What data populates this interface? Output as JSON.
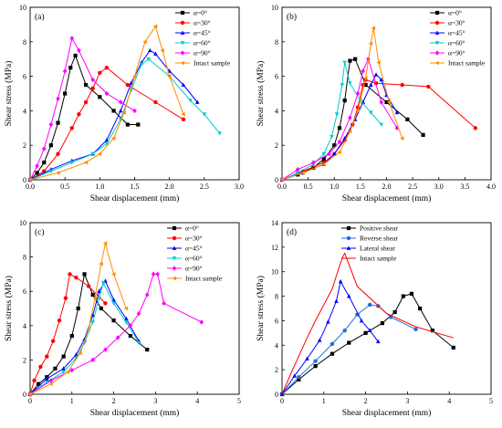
{
  "figure": {
    "title": ""
  },
  "chart_data": [
    {
      "panel": "(a)",
      "type": "line",
      "xlabel": "Shear displacement (mm)",
      "ylabel": "Shear stress (MPa)",
      "xlim": [
        0,
        3.0
      ],
      "ylim": [
        0,
        10
      ],
      "xticks": [
        "0.0",
        "0.5",
        "1.0",
        "1.5",
        "2.0",
        "2.5",
        "3.0"
      ],
      "yticks": [
        "0",
        "2",
        "4",
        "6",
        "8",
        "10"
      ],
      "legend_position": "top-right",
      "series": [
        {
          "name": "α=0°",
          "color": "#000000",
          "marker": "square",
          "x": [
            0,
            0.1,
            0.2,
            0.3,
            0.4,
            0.5,
            0.58,
            0.65,
            0.8,
            1.0,
            1.2,
            1.4,
            1.55
          ],
          "y": [
            0,
            0.4,
            1.0,
            2.0,
            3.3,
            5.0,
            6.5,
            7.2,
            5.5,
            4.8,
            4.0,
            3.2,
            3.2
          ]
        },
        {
          "name": "α=30°",
          "color": "#ff0000",
          "marker": "circle",
          "x": [
            0,
            0.2,
            0.4,
            0.6,
            0.7,
            0.8,
            0.9,
            1.0,
            1.1,
            1.4,
            1.8,
            2.2
          ],
          "y": [
            0,
            0.5,
            1.5,
            3.0,
            3.8,
            4.5,
            5.3,
            6.2,
            6.5,
            5.5,
            4.5,
            3.5
          ]
        },
        {
          "name": "α=45°",
          "color": "#0000ff",
          "marker": "triangle",
          "x": [
            0,
            0.3,
            0.6,
            0.9,
            1.1,
            1.3,
            1.45,
            1.6,
            1.72,
            1.8,
            2.0,
            2.2,
            2.4
          ],
          "y": [
            0,
            0.6,
            1.1,
            1.5,
            2.3,
            4.0,
            5.6,
            6.8,
            7.5,
            7.3,
            6.3,
            5.5,
            4.5
          ]
        },
        {
          "name": "α=60°",
          "color": "#00cccc",
          "marker": "triangle-down",
          "x": [
            0,
            0.3,
            0.6,
            0.9,
            1.1,
            1.3,
            1.45,
            1.6,
            1.7,
            2.0,
            2.3,
            2.5,
            2.72
          ],
          "y": [
            0,
            0.5,
            1.0,
            1.5,
            2.1,
            3.5,
            5.2,
            6.7,
            7.0,
            6.0,
            4.6,
            3.8,
            2.7
          ]
        },
        {
          "name": "α=90°",
          "color": "#ff00ff",
          "marker": "diamond",
          "x": [
            0,
            0.1,
            0.2,
            0.3,
            0.4,
            0.5,
            0.6,
            0.7,
            0.9,
            1.1,
            1.3,
            1.5
          ],
          "y": [
            0,
            0.8,
            1.8,
            3.2,
            4.7,
            6.3,
            8.2,
            7.5,
            5.8,
            5.0,
            4.5,
            4.0
          ]
        },
        {
          "name": "Intact sample",
          "color": "#ff8c00",
          "marker": "triangle-left",
          "x": [
            0,
            0.4,
            0.8,
            1.0,
            1.2,
            1.35,
            1.5,
            1.65,
            1.8,
            1.9,
            2.0,
            2.2
          ],
          "y": [
            0,
            0.4,
            1.0,
            1.5,
            2.4,
            3.9,
            6.0,
            8.0,
            8.9,
            7.5,
            6.0,
            3.8
          ]
        }
      ]
    },
    {
      "panel": "(b)",
      "type": "line",
      "xlabel": "Shear displacement (mm)",
      "ylabel": "Shear stress (MPa)",
      "xlim": [
        0,
        4.0
      ],
      "ylim": [
        0,
        10
      ],
      "xticks": [
        "0.0",
        "0.5",
        "1.0",
        "1.5",
        "2.0",
        "2.5",
        "3.0",
        "3.5",
        "4.0"
      ],
      "yticks": [
        "0",
        "2",
        "4",
        "6",
        "8",
        "10"
      ],
      "legend_position": "top-right",
      "series": [
        {
          "name": "α=0°",
          "color": "#000000",
          "marker": "square",
          "x": [
            0,
            0.3,
            0.6,
            0.8,
            1.0,
            1.1,
            1.2,
            1.3,
            1.4,
            1.6,
            2.0,
            2.4,
            2.7
          ],
          "y": [
            0,
            0.3,
            0.7,
            1.2,
            2.0,
            3.0,
            4.6,
            6.9,
            7.0,
            5.5,
            4.5,
            3.5,
            2.6
          ]
        },
        {
          "name": "α=30°",
          "color": "#ff0000",
          "marker": "circle",
          "x": [
            0,
            0.4,
            0.8,
            1.0,
            1.2,
            1.35,
            1.45,
            1.55,
            1.6,
            1.8,
            2.3,
            2.8,
            3.7
          ],
          "y": [
            0,
            0.5,
            1.0,
            1.5,
            2.3,
            3.2,
            4.2,
            5.5,
            5.8,
            5.6,
            5.5,
            5.4,
            3.0
          ]
        },
        {
          "name": "α=45°",
          "color": "#0000ff",
          "marker": "triangle",
          "x": [
            0,
            0.4,
            0.8,
            1.0,
            1.2,
            1.4,
            1.55,
            1.7,
            1.8,
            1.9,
            2.0,
            2.2
          ],
          "y": [
            0,
            0.4,
            0.9,
            1.5,
            2.4,
            3.5,
            4.5,
            5.5,
            6.1,
            5.8,
            4.9,
            3.9
          ]
        },
        {
          "name": "α=60°",
          "color": "#00cccc",
          "marker": "triangle-down",
          "x": [
            0,
            0.3,
            0.6,
            0.8,
            0.95,
            1.05,
            1.15,
            1.2,
            1.3,
            1.5,
            1.7,
            1.9
          ],
          "y": [
            0,
            0.4,
            0.9,
            1.5,
            2.5,
            3.8,
            5.5,
            6.8,
            5.6,
            4.6,
            3.9,
            3.2
          ]
        },
        {
          "name": "α=90°",
          "color": "#ff00ff",
          "marker": "diamond",
          "x": [
            0,
            0.3,
            0.6,
            0.9,
            1.1,
            1.3,
            1.45,
            1.55,
            1.65,
            1.9,
            2.2
          ],
          "y": [
            0,
            0.6,
            1.0,
            1.5,
            2.2,
            3.6,
            5.0,
            6.3,
            7.0,
            4.5,
            3.0
          ]
        },
        {
          "name": "Intact sample",
          "color": "#ff8c00",
          "marker": "triangle-left",
          "x": [
            0,
            0.4,
            0.8,
            1.1,
            1.3,
            1.45,
            1.6,
            1.7,
            1.75,
            1.85,
            2.05,
            2.3
          ],
          "y": [
            0,
            0.4,
            0.9,
            1.6,
            2.8,
            4.0,
            5.9,
            7.9,
            8.8,
            6.8,
            4.5,
            2.4
          ]
        }
      ]
    },
    {
      "panel": "(c)",
      "type": "line",
      "xlabel": "Shear displacement (mm)",
      "ylabel": "Shear stress (MPa)",
      "xlim": [
        0,
        5
      ],
      "ylim": [
        0,
        10
      ],
      "xticks": [
        "0",
        "1",
        "2",
        "3",
        "4",
        "5"
      ],
      "yticks": [
        "0",
        "2",
        "4",
        "6",
        "8",
        "10"
      ],
      "legend_position": "top-right",
      "series": [
        {
          "name": "α=0°",
          "color": "#000000",
          "marker": "square",
          "x": [
            0,
            0.2,
            0.4,
            0.6,
            0.8,
            1.0,
            1.15,
            1.3,
            1.5,
            1.7,
            2.0,
            2.4,
            2.8
          ],
          "y": [
            0,
            0.6,
            1.0,
            1.5,
            2.2,
            3.4,
            5.0,
            7.0,
            5.8,
            5.0,
            4.3,
            3.4,
            2.6
          ]
        },
        {
          "name": "α=30°",
          "color": "#ff0000",
          "marker": "circle",
          "x": [
            0,
            0.1,
            0.25,
            0.4,
            0.55,
            0.7,
            0.85,
            0.95,
            1.1,
            1.4,
            1.8
          ],
          "y": [
            0,
            0.8,
            1.6,
            2.2,
            3.1,
            4.3,
            5.6,
            7.0,
            6.8,
            6.3,
            5.3
          ]
        },
        {
          "name": "α=45°",
          "color": "#0000ff",
          "marker": "triangle",
          "x": [
            0,
            0.4,
            0.8,
            1.1,
            1.3,
            1.5,
            1.65,
            1.8,
            2.0,
            2.3,
            2.6
          ],
          "y": [
            0,
            0.9,
            1.5,
            2.3,
            3.2,
            4.6,
            6.0,
            6.6,
            5.5,
            4.4,
            3.1
          ]
        },
        {
          "name": "α=60°",
          "color": "#00cccc",
          "marker": "triangle-down",
          "x": [
            0,
            0.4,
            0.8,
            1.1,
            1.3,
            1.5,
            1.65,
            1.75,
            2.0,
            2.3,
            2.6
          ],
          "y": [
            0,
            0.7,
            1.3,
            2.1,
            3.0,
            4.2,
            5.6,
            6.5,
            5.3,
            4.2,
            3.0
          ]
        },
        {
          "name": "α=90°",
          "color": "#ff00ff",
          "marker": "diamond",
          "x": [
            0,
            0.5,
            1.0,
            1.5,
            1.8,
            2.1,
            2.4,
            2.6,
            2.8,
            2.95,
            3.05,
            3.2,
            4.1
          ],
          "y": [
            0,
            0.8,
            1.4,
            2.0,
            2.6,
            3.3,
            4.0,
            4.7,
            5.8,
            7.0,
            7.0,
            5.3,
            4.2
          ]
        },
        {
          "name": "Intact sample",
          "color": "#ff8c00",
          "marker": "triangle-left",
          "x": [
            0,
            0.5,
            0.9,
            1.2,
            1.4,
            1.55,
            1.7,
            1.8,
            2.0,
            2.3
          ],
          "y": [
            0,
            0.6,
            1.3,
            2.4,
            3.8,
            5.6,
            7.6,
            8.8,
            7.0,
            5.0
          ]
        }
      ]
    },
    {
      "panel": "(d)",
      "type": "line",
      "xlabel": "Shear displacement (mm)",
      "ylabel": "Shear stress (MPa)",
      "xlim": [
        0,
        5
      ],
      "ylim": [
        0,
        14
      ],
      "xticks": [
        "0",
        "1",
        "2",
        "3",
        "4",
        "5"
      ],
      "yticks": [
        "0",
        "2",
        "4",
        "6",
        "8",
        "10",
        "12",
        "14"
      ],
      "legend_position": "top-right",
      "series": [
        {
          "name": "Positive shear",
          "color": "#000000",
          "marker": "square",
          "x": [
            0,
            0.4,
            0.8,
            1.2,
            1.6,
            2.0,
            2.4,
            2.7,
            2.9,
            3.1,
            3.3,
            3.6,
            4.1
          ],
          "y": [
            0,
            1.2,
            2.3,
            3.3,
            4.2,
            5.0,
            5.8,
            6.7,
            8.0,
            8.2,
            7.0,
            5.2,
            3.8
          ]
        },
        {
          "name": "Reverse shear",
          "color": "#1e6fd9",
          "marker": "circle",
          "x": [
            0,
            0.4,
            0.8,
            1.2,
            1.5,
            1.8,
            2.1,
            2.3,
            2.6,
            3.2
          ],
          "y": [
            0,
            1.4,
            2.7,
            4.1,
            5.2,
            6.5,
            7.3,
            7.2,
            6.3,
            5.3
          ]
        },
        {
          "name": "Lateral shear",
          "color": "#0000ff",
          "marker": "triangle",
          "x": [
            0,
            0.3,
            0.6,
            0.9,
            1.1,
            1.3,
            1.4,
            1.6,
            1.9,
            2.1,
            2.3
          ],
          "y": [
            0,
            1.5,
            2.9,
            4.4,
            5.9,
            7.6,
            9.2,
            8.0,
            6.0,
            5.2,
            4.3
          ]
        },
        {
          "name": "Intact sample",
          "color": "#ff0000",
          "marker": "none",
          "x": [
            0,
            0.2,
            0.4,
            0.6,
            0.8,
            1.0,
            1.2,
            1.35,
            1.45,
            1.5,
            1.8,
            2.5,
            3.2,
            4.1
          ],
          "y": [
            0,
            1.6,
            3.1,
            4.6,
            6.0,
            7.3,
            8.6,
            10.2,
            11.2,
            11.5,
            8.8,
            6.6,
            5.5,
            4.6
          ]
        }
      ]
    }
  ]
}
